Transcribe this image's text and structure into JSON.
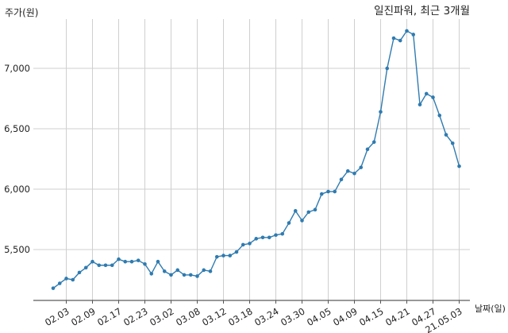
{
  "chart_data": {
    "type": "line",
    "title": "일진파워, 최근 3개월",
    "ylabel": "주가(원)",
    "xlabel": "날짜(일)",
    "ylim": [
      5100,
      7400
    ],
    "yticks": [
      5500,
      6000,
      6500,
      7000
    ],
    "ytick_labels": [
      "5,500",
      "6,000",
      "6,500",
      "7,000"
    ],
    "xtick_labels": [
      "02.03",
      "02.09",
      "02.17",
      "02.23",
      "03.02",
      "03.08",
      "03.12",
      "03.18",
      "03.24",
      "03.30",
      "04.05",
      "04.09",
      "04.15",
      "04.21",
      "04.27",
      "21.05.03"
    ],
    "xtick_index": [
      2,
      6,
      10,
      14,
      18,
      22,
      26,
      30,
      34,
      38,
      42,
      46,
      50,
      54,
      58,
      62
    ],
    "grid": true,
    "line_color": "#2f7bb0",
    "series": [
      {
        "values": [
          5180,
          5220,
          5260,
          5250,
          5310,
          5350,
          5400,
          5370,
          5370,
          5370,
          5420,
          5400,
          5400,
          5410,
          5380,
          5300,
          5400,
          5320,
          5290,
          5330,
          5290,
          5290,
          5280,
          5330,
          5320,
          5440,
          5450,
          5450,
          5480,
          5540,
          5550,
          5590,
          5600,
          5600,
          5620,
          5630,
          5720,
          5820,
          5740,
          5810,
          5830,
          5960,
          5980,
          5980,
          6080,
          6150,
          6130,
          6180,
          6330,
          6390,
          6640,
          7000,
          7250,
          7230,
          7310,
          7280,
          6700,
          6790,
          6760,
          6610,
          6450,
          6380,
          6190
        ]
      }
    ]
  }
}
